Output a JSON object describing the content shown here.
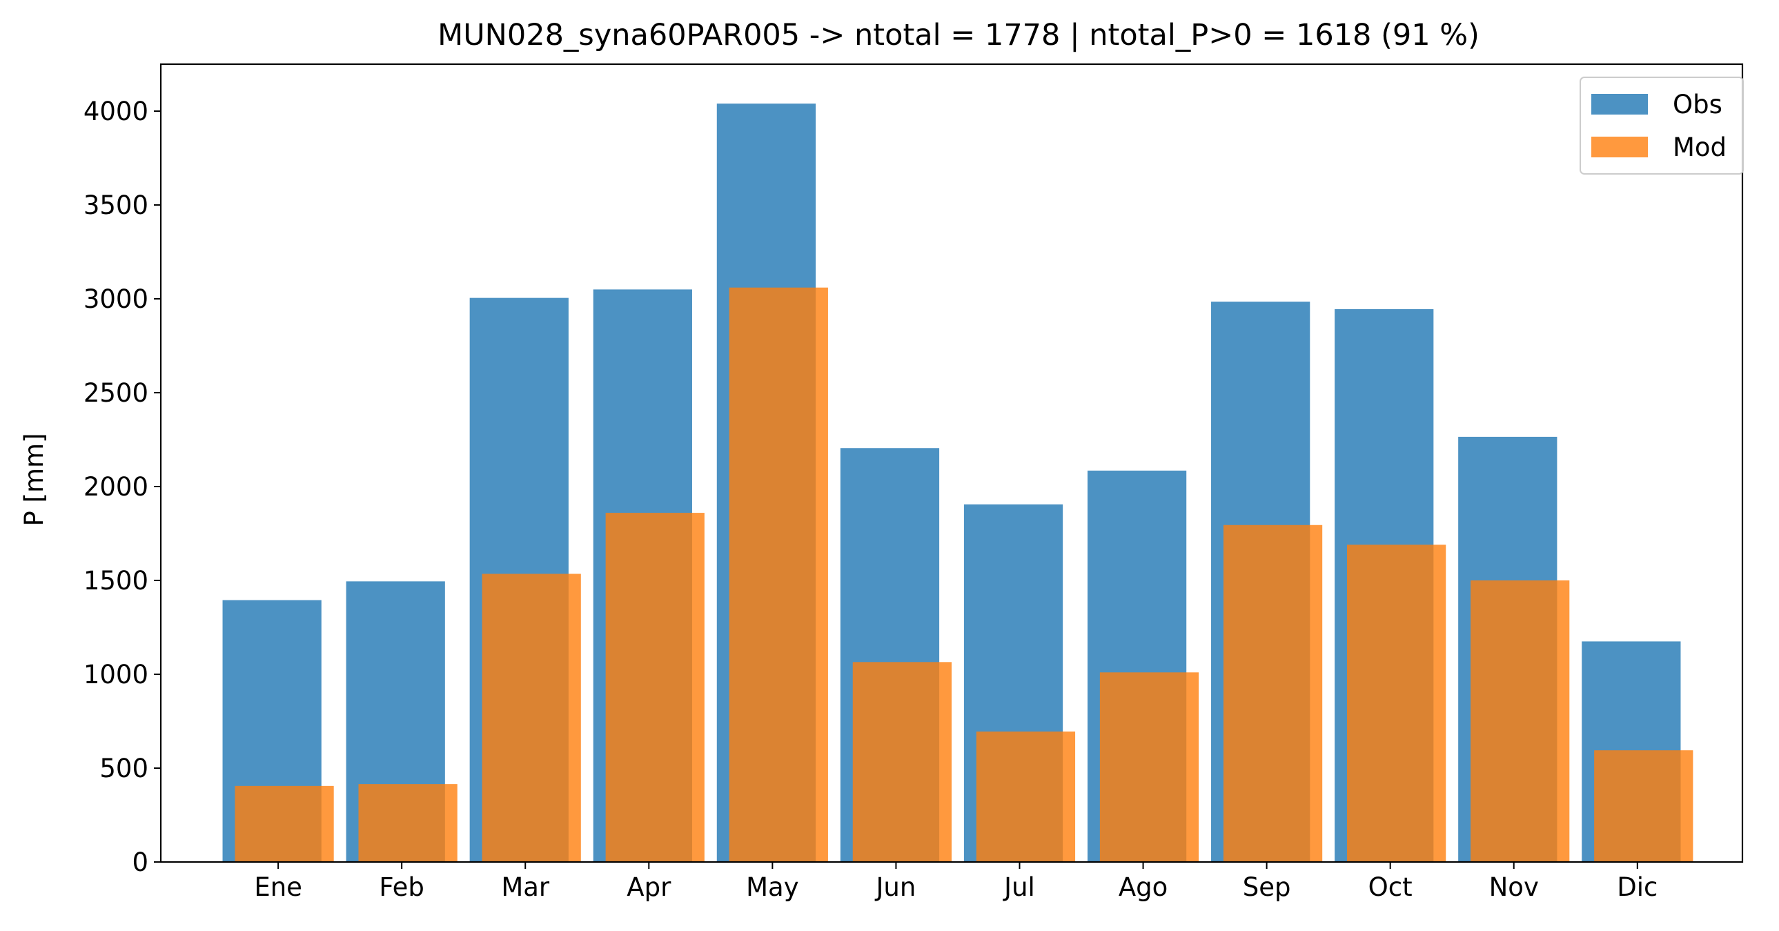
{
  "chart_data": {
    "type": "bar",
    "title": "MUN028_syna60PAR005 -> ntotal = 1778 | ntotal_P>0 = 1618 (91 %)",
    "xlabel": "",
    "ylabel": "P [mm]",
    "ylim": [
      0,
      4250
    ],
    "yticks": [
      0,
      500,
      1000,
      1500,
      2000,
      2500,
      3000,
      3500,
      4000
    ],
    "categories": [
      "Ene",
      "Feb",
      "Mar",
      "Apr",
      "May",
      "Jun",
      "Jul",
      "Ago",
      "Sep",
      "Oct",
      "Nov",
      "Dic"
    ],
    "series": [
      {
        "name": "Obs",
        "color": "#1f77b4",
        "opacity": 0.8,
        "values": [
          1395,
          1495,
          3005,
          3050,
          4040,
          2205,
          1905,
          2085,
          2985,
          2945,
          2265,
          1175
        ]
      },
      {
        "name": "Mod",
        "color": "#ff7f0e",
        "opacity": 0.8,
        "values": [
          405,
          415,
          1535,
          1860,
          3060,
          1065,
          695,
          1010,
          1795,
          1690,
          1500,
          595
        ]
      }
    ],
    "grid": false,
    "legend_position": "top-right"
  }
}
